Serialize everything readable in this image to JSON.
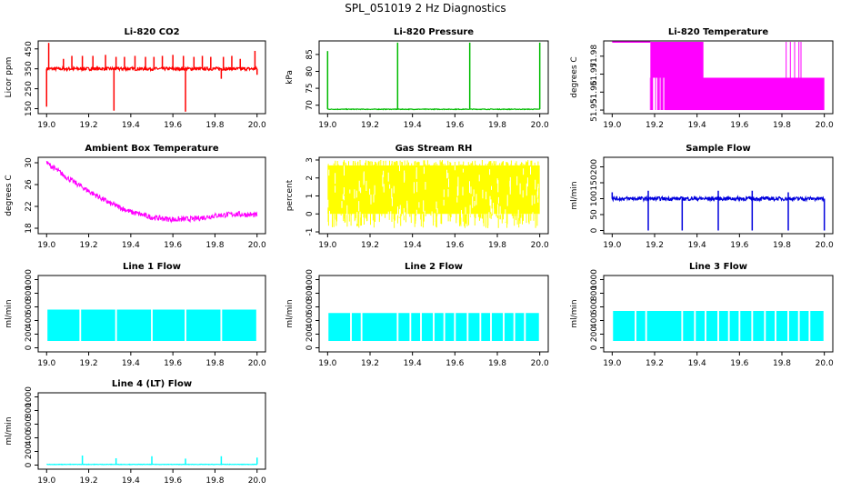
{
  "title": "SPL_051019  2 Hz Diagnostics",
  "chart_data": [
    {
      "id": "co2",
      "type": "line",
      "title": "Li-820 CO2",
      "xlabel": "",
      "ylabel": "Licor ppm",
      "x_range": [
        19.0,
        20.0
      ],
      "xticks": [
        19.0,
        19.2,
        19.4,
        19.6,
        19.8,
        20.0
      ],
      "ylim": [
        125,
        490
      ],
      "yticks": [
        150,
        250,
        350,
        450
      ],
      "color": "#ff0000",
      "series": [
        {
          "baseline": 350,
          "noise": 8,
          "spikes_up": [
            [
              19.01,
              480
            ],
            [
              19.08,
              400
            ],
            [
              19.12,
              415
            ],
            [
              19.17,
              415
            ],
            [
              19.22,
              415
            ],
            [
              19.28,
              420
            ],
            [
              19.33,
              410
            ],
            [
              19.37,
              410
            ],
            [
              19.42,
              415
            ],
            [
              19.47,
              410
            ],
            [
              19.51,
              410
            ],
            [
              19.55,
              415
            ],
            [
              19.6,
              420
            ],
            [
              19.65,
              415
            ],
            [
              19.7,
              410
            ],
            [
              19.74,
              415
            ],
            [
              19.78,
              410
            ],
            [
              19.84,
              410
            ],
            [
              19.88,
              415
            ],
            [
              19.92,
              400
            ],
            [
              19.99,
              440
            ]
          ],
          "spikes_down": [
            [
              19.0,
              160
            ],
            [
              19.32,
              140
            ],
            [
              19.66,
              135
            ],
            [
              19.83,
              300
            ],
            [
              20.0,
              320
            ]
          ]
        }
      ]
    },
    {
      "id": "pressure",
      "type": "line",
      "title": "Li-820 Pressure",
      "xlabel": "",
      "ylabel": "kPa",
      "x_range": [
        19.0,
        20.0
      ],
      "xticks": [
        19.0,
        19.2,
        19.4,
        19.6,
        19.8,
        20.0
      ],
      "ylim": [
        67.5,
        89
      ],
      "yticks": [
        70,
        75,
        80,
        85
      ],
      "color": "#00bb00",
      "series": [
        {
          "baseline": 68.8,
          "noise": 0.1,
          "spikes_up": [
            [
              19.0,
              86
            ],
            [
              19.33,
              88.5
            ],
            [
              19.67,
              88.5
            ],
            [
              20.0,
              88.5
            ]
          ],
          "spikes_down": []
        }
      ]
    },
    {
      "id": "temperature",
      "type": "line",
      "title": "Li-820 Temperature",
      "xlabel": "",
      "ylabel": "degrees C",
      "x_range": [
        19.0,
        20.0
      ],
      "xticks": [
        19.0,
        19.2,
        19.4,
        19.6,
        19.8,
        20.0
      ],
      "ylim": [
        51.948,
        51.9885
      ],
      "yticks": [
        51.95,
        51.96,
        51.97,
        51.98
      ],
      "color": "#ff00ff",
      "series": [
        {
          "high": 51.988,
          "low": 51.95,
          "mid": 51.968
        }
      ]
    },
    {
      "id": "ambient",
      "type": "line",
      "title": "Ambient Box Temperature",
      "xlabel": "",
      "ylabel": "degrees C",
      "x_range": [
        19.0,
        20.0
      ],
      "xticks": [
        19.0,
        19.2,
        19.4,
        19.6,
        19.8,
        20.0
      ],
      "ylim": [
        17,
        31
      ],
      "yticks": [
        18,
        22,
        26,
        30
      ],
      "color": "#ff00ff",
      "series": [
        {
          "points": [
            [
              19.0,
              30
            ],
            [
              19.1,
              27.2
            ],
            [
              19.2,
              24.8
            ],
            [
              19.3,
              22.6
            ],
            [
              19.4,
              21
            ],
            [
              19.5,
              20
            ],
            [
              19.6,
              19.6
            ],
            [
              19.7,
              19.7
            ],
            [
              19.8,
              20.3
            ],
            [
              19.9,
              20.6
            ],
            [
              20.0,
              20.4
            ]
          ],
          "noise": 1.0
        }
      ]
    },
    {
      "id": "rh",
      "type": "line",
      "title": "Gas Stream RH",
      "xlabel": "",
      "ylabel": "percent",
      "x_range": [
        19.0,
        20.0
      ],
      "xticks": [
        19.0,
        19.2,
        19.4,
        19.6,
        19.8,
        20.0
      ],
      "ylim": [
        -1.1,
        3.15
      ],
      "yticks": [
        -1,
        0,
        1,
        2,
        3
      ],
      "color": "#ffff00",
      "series": [
        {
          "high": 2.7,
          "low": 0.0,
          "min_spike": -0.8
        }
      ]
    },
    {
      "id": "sample_flow",
      "type": "line",
      "title": "Sample Flow",
      "xlabel": "",
      "ylabel": "ml/min",
      "x_range": [
        19.0,
        20.0
      ],
      "xticks": [
        19.0,
        19.2,
        19.4,
        19.6,
        19.8,
        20.0
      ],
      "ylim": [
        -10,
        230
      ],
      "yticks": [
        0,
        50,
        100,
        150,
        200
      ],
      "color": "#0000dd",
      "series": [
        {
          "baseline": 100,
          "noise": 6,
          "spikes_up": [
            [
              19.0,
              120
            ],
            [
              19.17,
              125
            ],
            [
              19.5,
              125
            ],
            [
              19.66,
              125
            ],
            [
              19.83,
              120
            ]
          ],
          "spikes_down": [
            [
              19.17,
              0
            ],
            [
              19.33,
              0
            ],
            [
              19.5,
              0
            ],
            [
              19.66,
              0
            ],
            [
              19.83,
              0
            ],
            [
              20.0,
              0
            ]
          ]
        }
      ]
    },
    {
      "id": "line1",
      "type": "line",
      "title": "Line 1 Flow",
      "xlabel": "",
      "ylabel": "ml/min",
      "x_range": [
        19.0,
        20.0
      ],
      "xticks": [
        19.0,
        19.2,
        19.4,
        19.6,
        19.8,
        20.0
      ],
      "ylim": [
        -60,
        1060
      ],
      "yticks": [
        0,
        200,
        400,
        600,
        800,
        1000
      ],
      "color": "#00ffff",
      "series": [
        {
          "high": 560,
          "low": 100,
          "gaps": [
            19.16,
            19.33,
            19.5,
            19.66,
            19.83
          ]
        }
      ]
    },
    {
      "id": "line2",
      "type": "line",
      "title": "Line 2 Flow",
      "xlabel": "",
      "ylabel": "ml/min",
      "x_range": [
        19.0,
        20.0
      ],
      "xticks": [
        19.0,
        19.2,
        19.4,
        19.6,
        19.8,
        20.0
      ],
      "ylim": [
        -60,
        1060
      ],
      "yticks": [
        0,
        200,
        400,
        600,
        800,
        1000
      ],
      "color": "#00ffff",
      "series": [
        {
          "high": 510,
          "low": 100,
          "gaps": [
            19.11,
            19.16,
            19.33,
            19.39,
            19.44,
            19.5,
            19.55,
            19.6,
            19.66,
            19.72,
            19.77,
            19.83,
            19.88,
            19.93
          ]
        }
      ]
    },
    {
      "id": "line3",
      "type": "line",
      "title": "Line 3 Flow",
      "xlabel": "",
      "ylabel": "ml/min",
      "x_range": [
        19.0,
        20.0
      ],
      "xticks": [
        19.0,
        19.2,
        19.4,
        19.6,
        19.8,
        20.0
      ],
      "ylim": [
        -60,
        1060
      ],
      "yticks": [
        0,
        200,
        400,
        600,
        800,
        1000
      ],
      "color": "#00ffff",
      "series": [
        {
          "high": 540,
          "low": 100,
          "gaps": [
            19.11,
            19.16,
            19.33,
            19.39,
            19.44,
            19.5,
            19.55,
            19.6,
            19.66,
            19.72,
            19.77,
            19.83,
            19.88,
            19.93
          ]
        }
      ]
    },
    {
      "id": "line4",
      "type": "line",
      "title": "Line 4 (LT) Flow",
      "xlabel": "",
      "ylabel": "ml/min",
      "x_range": [
        19.0,
        20.0
      ],
      "xticks": [
        19.0,
        19.2,
        19.4,
        19.6,
        19.8,
        20.0
      ],
      "ylim": [
        -60,
        1060
      ],
      "yticks": [
        0,
        200,
        400,
        600,
        800,
        1000
      ],
      "color": "#00ffff",
      "series": [
        {
          "baseline": 10,
          "noise": 3,
          "spikes_up": [
            [
              19.17,
              140
            ],
            [
              19.33,
              100
            ],
            [
              19.5,
              130
            ],
            [
              19.66,
              95
            ],
            [
              19.83,
              130
            ],
            [
              20.0,
              110
            ]
          ],
          "spikes_down": []
        }
      ]
    }
  ]
}
